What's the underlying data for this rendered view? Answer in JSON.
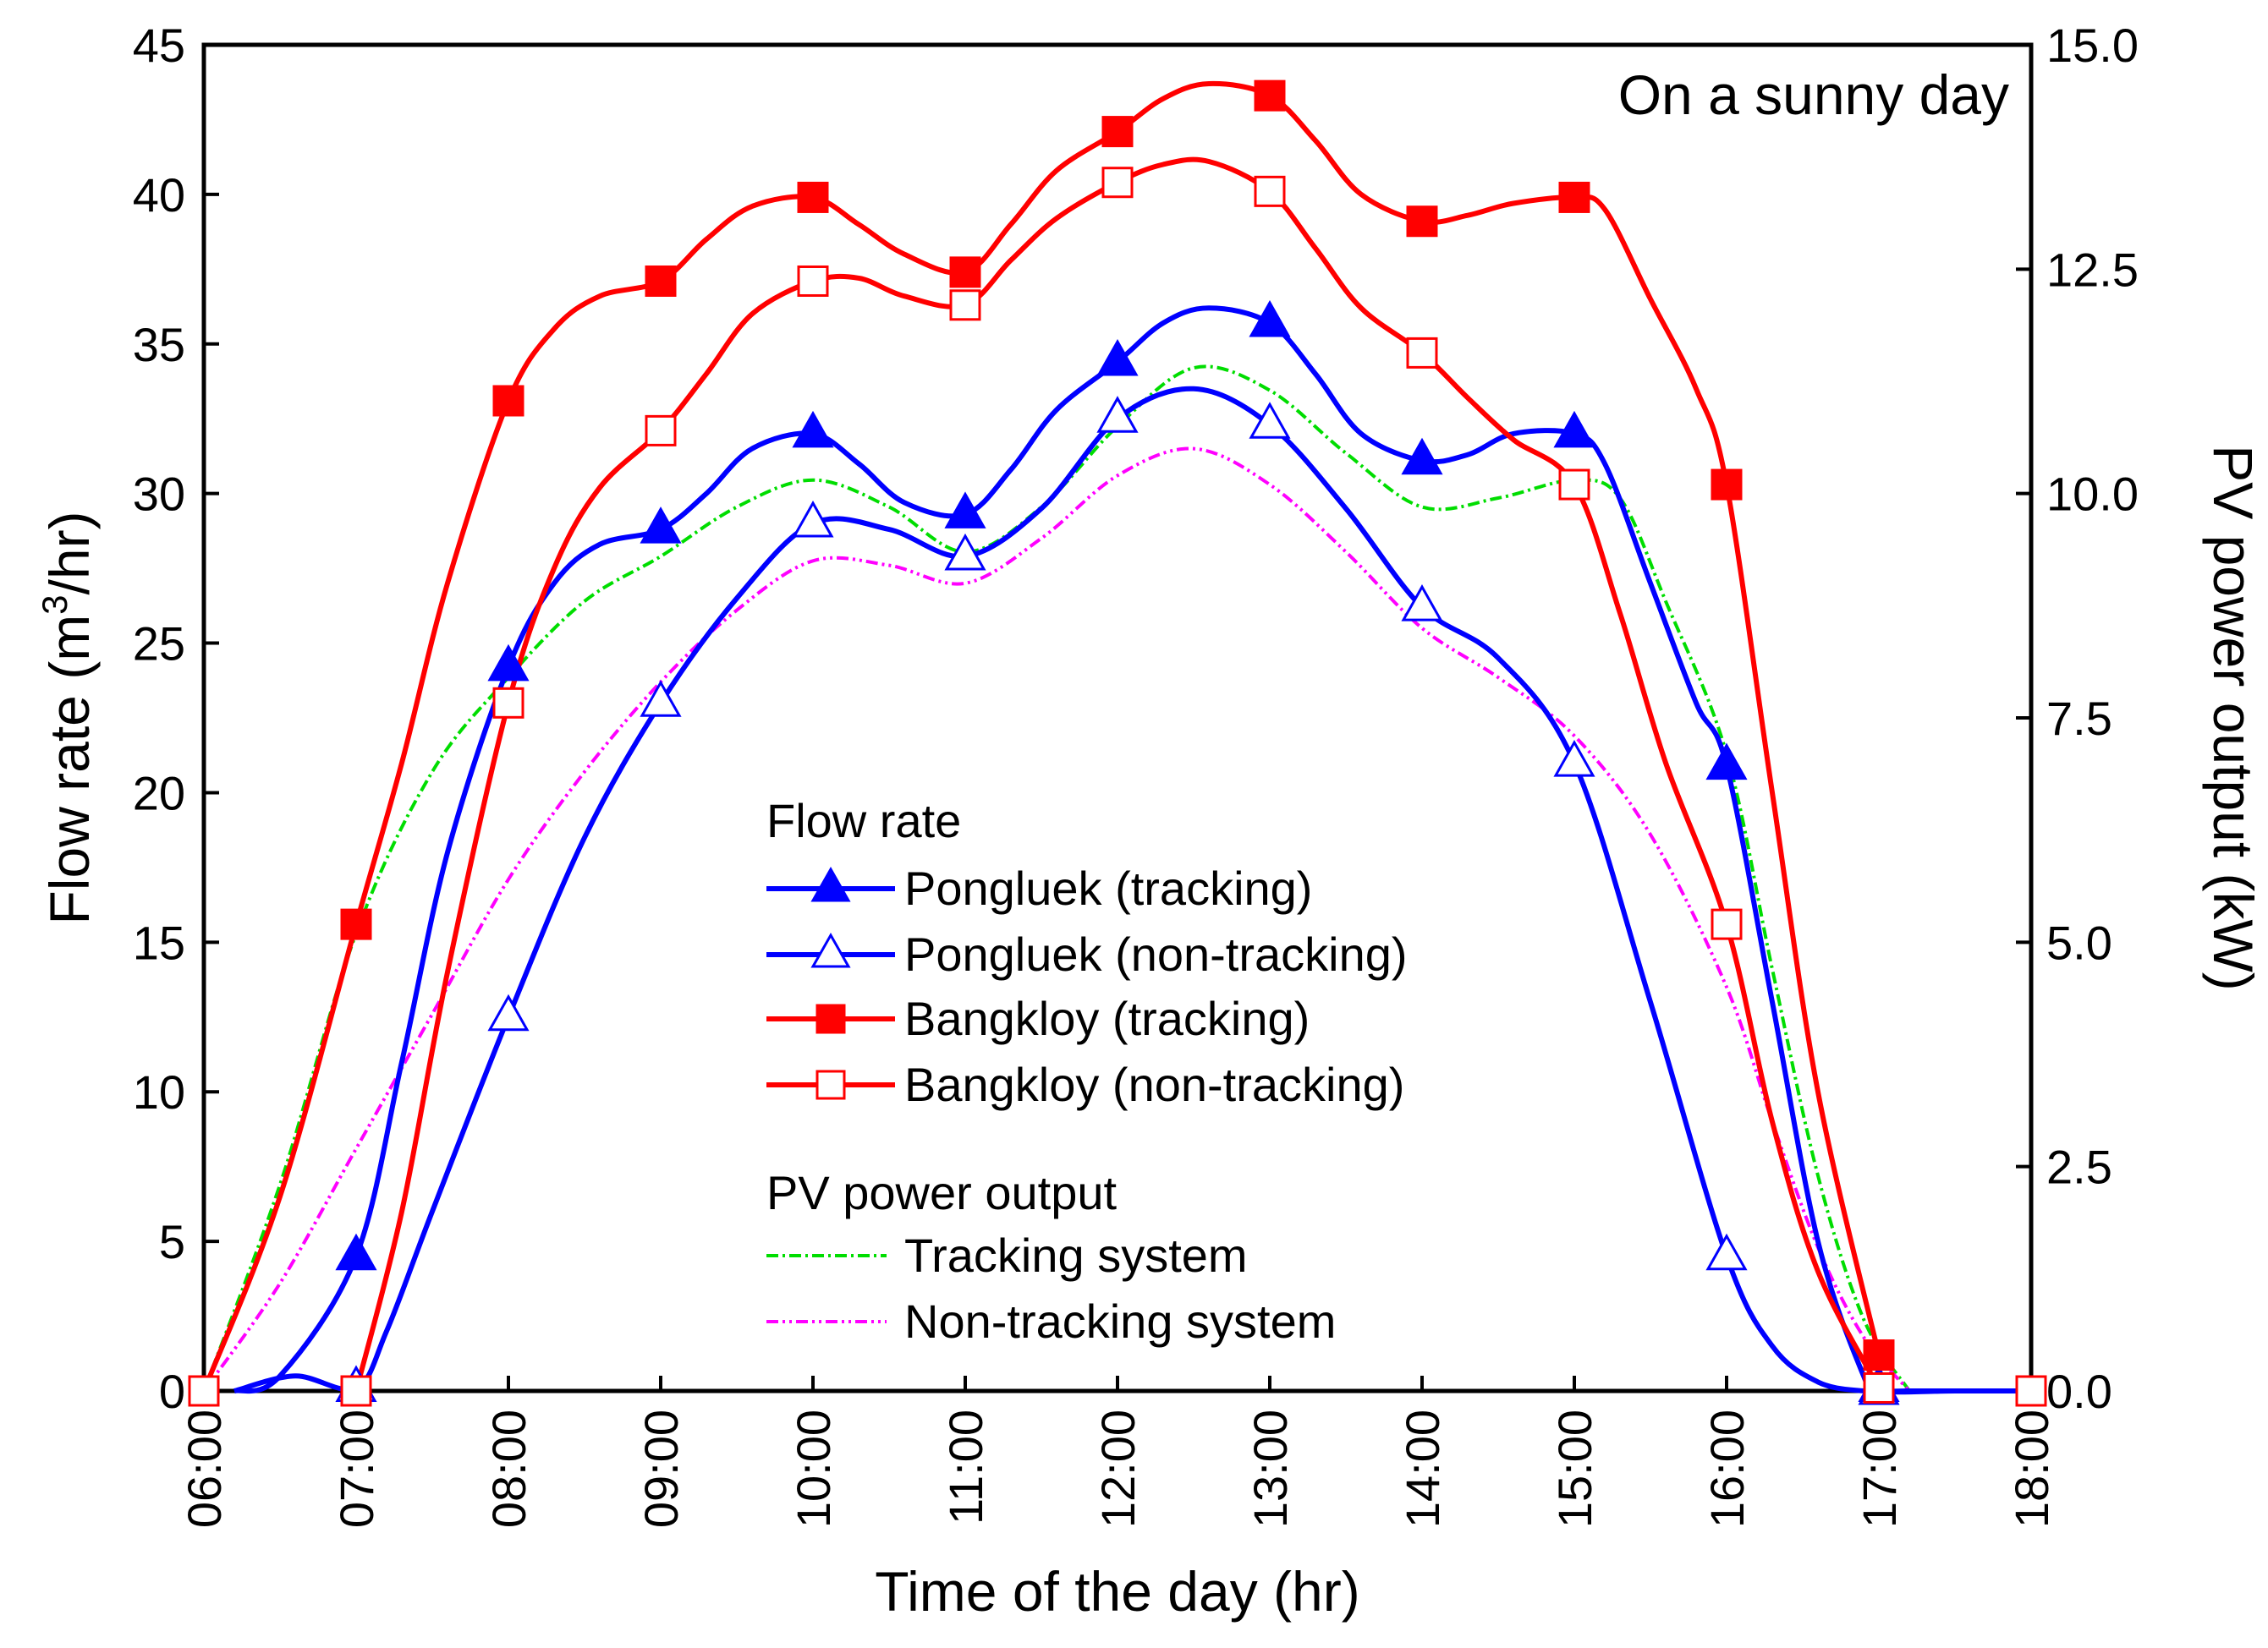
{
  "chart_data": {
    "type": "line",
    "title": "On a sunny day",
    "xlabel": "Time of the day (hr)",
    "ylabel_left": "Flow rate (m",
    "ylabel_left_sup": "3",
    "ylabel_left_end": "/hr)",
    "ylabel_right": "PV power output (kW)",
    "x_ticks": [
      "06:00",
      "07:00",
      "08:00",
      "09:00",
      "10:00",
      "11:00",
      "12:00",
      "13:00",
      "14:00",
      "15:00",
      "16:00",
      "17:00",
      "18:00"
    ],
    "x_hours": [
      6,
      7,
      8,
      9,
      10,
      11,
      12,
      13,
      14,
      15,
      16,
      17,
      18
    ],
    "xlim": [
      6,
      18
    ],
    "ylim_left": [
      0,
      45
    ],
    "ylim_right": [
      0,
      15
    ],
    "y_left_ticks": [
      0,
      5,
      10,
      15,
      20,
      25,
      30,
      35,
      40,
      45
    ],
    "y_left_tick_labels": [
      "0",
      "5",
      "10",
      "15",
      "20",
      "25",
      "30",
      "35",
      "40",
      "45"
    ],
    "y_right_ticks": [
      0,
      2.5,
      5,
      7.5,
      10,
      12.5,
      15
    ],
    "y_right_tick_labels": [
      "0.0",
      "2.5",
      "5.0",
      "7.5",
      "10.0",
      "12.5",
      "15.0"
    ],
    "legend_flow_title": "Flow rate",
    "legend_pv_title": "PV power output",
    "series": [
      {
        "name": "Pongluek (tracking)",
        "axis": "left",
        "color": "#0000ff",
        "marker": "triangle-filled",
        "x": [
          7,
          8,
          9,
          10,
          11,
          12,
          13,
          14,
          15,
          16,
          17
        ],
        "y": [
          4.5,
          24.2,
          28.8,
          32.0,
          29.3,
          34.4,
          35.7,
          31.1,
          32.0,
          20.9,
          0.1
        ],
        "curve_x": [
          6.2,
          6.5,
          7,
          7.3,
          7.6,
          8,
          8.3,
          8.6,
          9,
          9.3,
          9.6,
          10,
          10.3,
          10.6,
          11,
          11.3,
          11.6,
          12,
          12.3,
          12.6,
          13,
          13.3,
          13.6,
          14,
          14.3,
          14.6,
          15,
          15.2,
          15.5,
          15.8,
          16,
          16.3,
          16.6,
          16.9,
          17,
          17.5,
          18
        ],
        "curve_y": [
          0,
          0.5,
          4.5,
          11,
          18,
          24.2,
          27,
          28.3,
          28.8,
          30,
          31.5,
          32,
          31,
          29.7,
          29.3,
          30.8,
          32.8,
          34.4,
          35.7,
          36.2,
          35.7,
          34,
          32,
          31.1,
          31.3,
          32,
          32.0,
          31,
          27,
          23,
          20.9,
          13,
          5,
          0.5,
          0,
          0,
          0
        ]
      },
      {
        "name": "Pongluek (non-tracking)",
        "axis": "left",
        "color": "#0000ff",
        "marker": "triangle-open",
        "x": [
          7,
          8,
          9,
          10,
          11,
          12,
          13,
          14,
          15,
          16,
          17
        ],
        "y": [
          0.1,
          12.5,
          23.0,
          29.0,
          27.9,
          32.5,
          32.3,
          26.2,
          21.0,
          4.5,
          0
        ],
        "curve_x": [
          6.2,
          6.6,
          7,
          7.2,
          7.5,
          8,
          8.5,
          9,
          9.5,
          10,
          10.5,
          11,
          11.5,
          12,
          12.5,
          13,
          13.5,
          14,
          14.5,
          15,
          15.5,
          16,
          16.3,
          16.6,
          16.9,
          17.2,
          17.6,
          18
        ],
        "curve_y": [
          0,
          0.5,
          0.1,
          2,
          6,
          12.5,
          18.5,
          23.0,
          26.5,
          29,
          28.8,
          27.9,
          29.5,
          32.5,
          33.5,
          32.3,
          29.5,
          26.2,
          24.5,
          21.0,
          13,
          4.5,
          1.5,
          0.3,
          0,
          0,
          0,
          0
        ]
      },
      {
        "name": "Bangkloy (tracking)",
        "axis": "left",
        "color": "#ff0000",
        "marker": "square-filled",
        "x": [
          7,
          8,
          9,
          10,
          11,
          12,
          13,
          14,
          15,
          16,
          17
        ],
        "y": [
          15.6,
          33.1,
          37.1,
          39.9,
          37.4,
          42.1,
          43.3,
          39.1,
          39.9,
          30.3,
          1.2
        ],
        "curve_x": [
          6,
          6.5,
          7,
          7.3,
          7.6,
          8,
          8.3,
          8.6,
          9,
          9.3,
          9.6,
          10,
          10.3,
          10.6,
          11,
          11.3,
          11.6,
          12,
          12.3,
          12.6,
          13,
          13.3,
          13.6,
          14,
          14.3,
          14.6,
          15,
          15.2,
          15.5,
          15.8,
          16,
          16.3,
          16.6,
          17
        ],
        "curve_y": [
          0,
          6.5,
          15.6,
          21,
          27,
          33.1,
          35.5,
          36.6,
          37.1,
          38.5,
          39.6,
          39.9,
          39,
          38,
          37.4,
          39,
          40.8,
          42.1,
          43.2,
          43.7,
          43.3,
          41.8,
          40,
          39.1,
          39.3,
          39.7,
          39.9,
          39.5,
          36.5,
          33.5,
          30.3,
          20,
          10,
          1.2
        ]
      },
      {
        "name": "Bangkloy (non-tracking)",
        "axis": "left",
        "color": "#ff0000",
        "marker": "square-open",
        "x": [
          6,
          7,
          8,
          9,
          10,
          11,
          12,
          13,
          14,
          15,
          16,
          17,
          18
        ],
        "y": [
          0,
          0,
          23.0,
          32.1,
          37.1,
          36.3,
          40.4,
          40.1,
          34.7,
          30.3,
          15.6,
          0.1,
          0
        ],
        "curve_x": [
          7,
          7.3,
          7.6,
          8,
          8.3,
          8.6,
          9,
          9.3,
          9.6,
          10,
          10.3,
          10.6,
          11,
          11.3,
          11.6,
          12,
          12.3,
          12.6,
          13,
          13.3,
          13.6,
          14,
          14.3,
          14.6,
          15,
          15.3,
          15.6,
          16,
          16.3,
          16.6,
          17
        ],
        "curve_y": [
          0,
          6,
          14,
          23.0,
          27.5,
          30.2,
          32.1,
          34,
          36,
          37.1,
          37.2,
          36.6,
          36.3,
          37.8,
          39.2,
          40.4,
          41,
          41.1,
          40.1,
          38.2,
          36.2,
          34.7,
          33.2,
          31.8,
          30.3,
          26,
          21,
          15.6,
          9,
          4,
          0.1
        ]
      },
      {
        "name": "Tracking system",
        "axis": "right",
        "color": "#00dd00",
        "marker": "none",
        "dash": "14,5,3,5",
        "curve_x": [
          6,
          6.5,
          7,
          7.5,
          8,
          8.5,
          9,
          9.5,
          10,
          10.5,
          11,
          11.5,
          12,
          12.5,
          13,
          13.5,
          14,
          14.5,
          15,
          15.3,
          15.6,
          16,
          16.3,
          16.6,
          16.9,
          17.2
        ],
        "curve_y": [
          0,
          2.3,
          5.1,
          6.9,
          7.95,
          8.8,
          9.3,
          9.85,
          10.15,
          9.85,
          9.35,
          9.85,
          10.75,
          11.4,
          11.15,
          10.45,
          9.85,
          9.95,
          10.15,
          9.95,
          8.8,
          7.1,
          4.7,
          2.4,
          0.8,
          0
        ]
      },
      {
        "name": "Non-tracking system",
        "axis": "right",
        "color": "#ff00ff",
        "marker": "none",
        "dash": "14,5,3,5,3,5",
        "curve_x": [
          6,
          6.5,
          7,
          7.5,
          8,
          8.5,
          9,
          9.5,
          10,
          10.5,
          11,
          11.5,
          12,
          12.5,
          13,
          13.5,
          14,
          14.5,
          15,
          15.5,
          16,
          16.3,
          16.6,
          16.9,
          17.2
        ],
        "curve_y": [
          0,
          1.2,
          2.7,
          4.2,
          5.7,
          6.9,
          7.9,
          8.7,
          9.25,
          9.2,
          9.0,
          9.5,
          10.2,
          10.5,
          10.1,
          9.35,
          8.5,
          7.95,
          7.3,
          6.2,
          4.5,
          3.0,
          1.6,
          0.6,
          0
        ]
      }
    ]
  }
}
